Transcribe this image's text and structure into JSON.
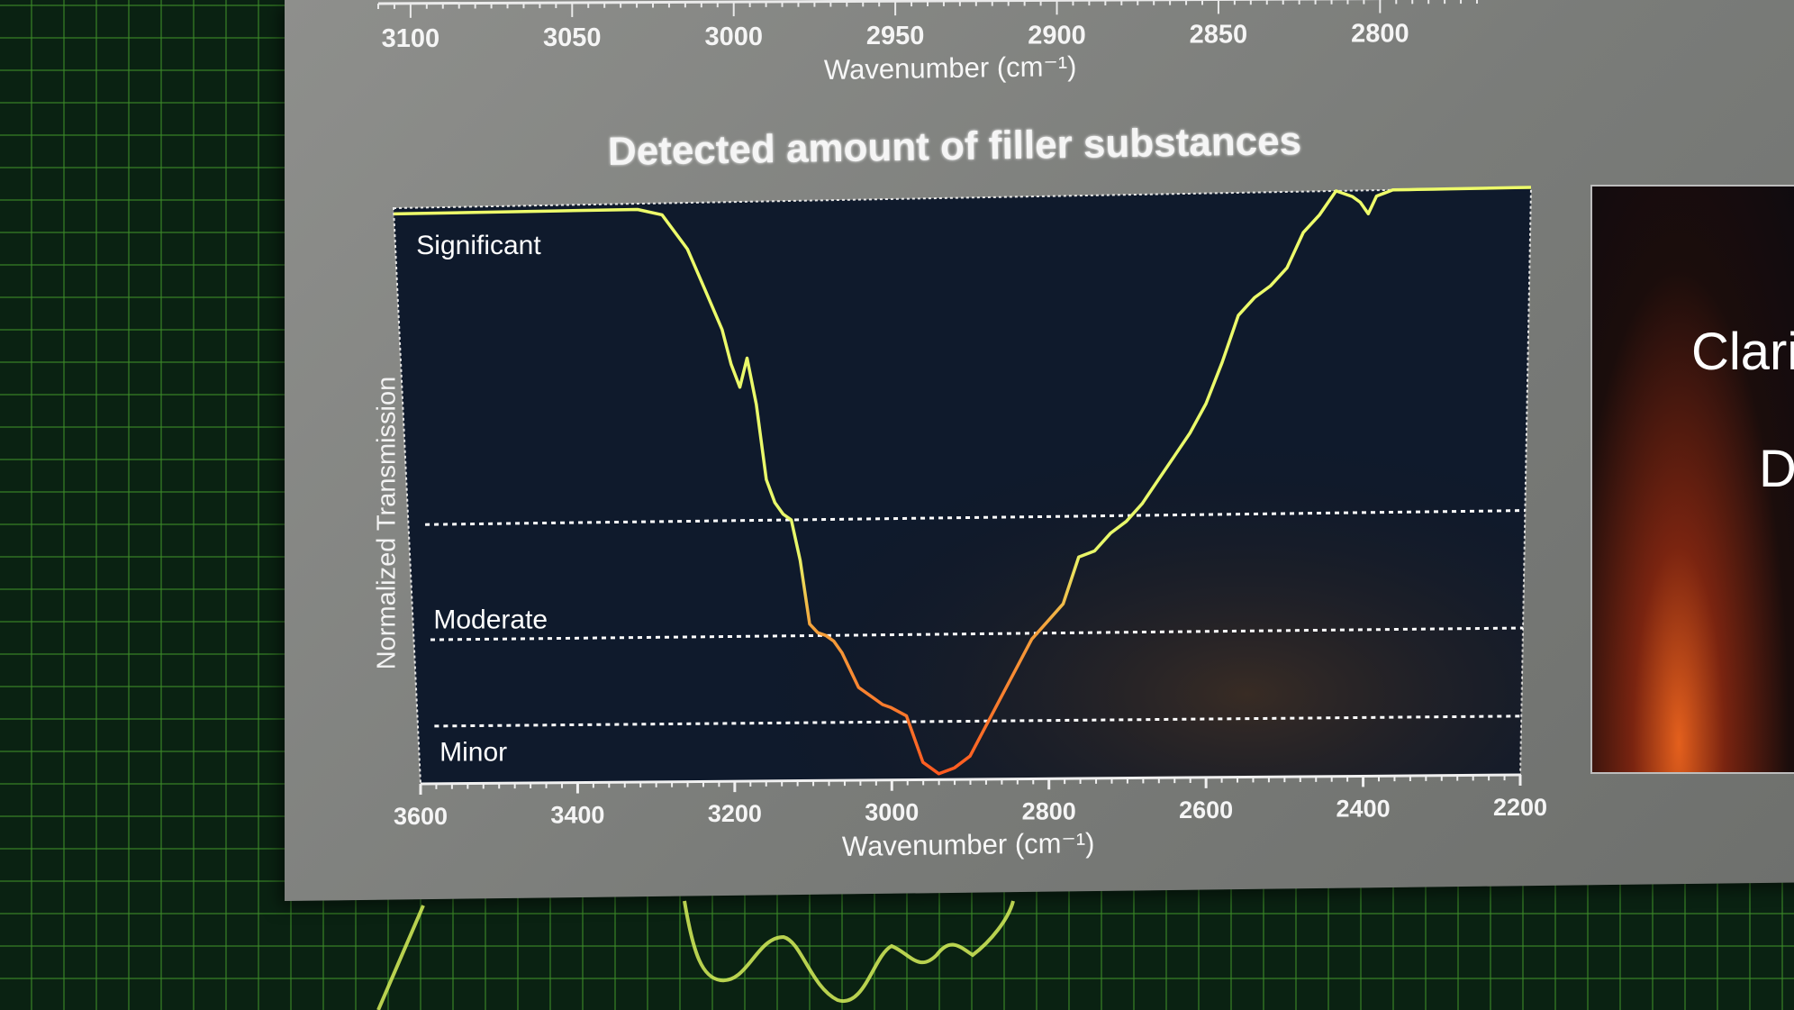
{
  "chart_data": [
    {
      "type": "line",
      "title": "",
      "xlabel": "Wavenumber (cm⁻¹)",
      "ylabel": "",
      "x_ticks": [
        3100,
        3050,
        3000,
        2950,
        2900,
        2850,
        2800
      ],
      "xlim": [
        3110,
        2770
      ],
      "note_partial": true
    },
    {
      "type": "line",
      "title": "Detected amount of filler substances",
      "xlabel": "Wavenumber (cm⁻¹)",
      "ylabel": "Normalized Transmission",
      "xlim": [
        3600,
        2200
      ],
      "ylim": [
        0,
        1
      ],
      "x_ticks": [
        3600,
        3400,
        3200,
        3000,
        2800,
        2600,
        2400,
        2200
      ],
      "bands": [
        {
          "label": "Significant",
          "threshold": 0.45
        },
        {
          "label": "Moderate",
          "threshold": 0.25
        },
        {
          "label": "Minor",
          "threshold": 0.1
        }
      ],
      "grid": false,
      "series": [
        {
          "x": [
            3600,
            3500,
            3400,
            3300,
            3270,
            3240,
            3220,
            3200,
            3190,
            3180,
            3170,
            3160,
            3150,
            3140,
            3130,
            3120,
            3110,
            3100,
            3090,
            3080,
            3070,
            3060,
            3040,
            3020,
            3010,
            3000,
            2980,
            2960,
            2940,
            2920,
            2900,
            2880,
            2860,
            2840,
            2820,
            2800,
            2780,
            2760,
            2740,
            2720,
            2700,
            2680,
            2660,
            2640,
            2620,
            2600,
            2580,
            2560,
            2540,
            2520,
            2500,
            2480,
            2460,
            2440,
            2420,
            2410,
            2400,
            2390,
            2380,
            2370,
            2360,
            2350,
            2340,
            2320,
            2300,
            2260,
            2220,
            2200
          ],
          "y": [
            0.99,
            0.99,
            0.99,
            0.99,
            0.98,
            0.92,
            0.85,
            0.78,
            0.72,
            0.68,
            0.73,
            0.65,
            0.52,
            0.48,
            0.46,
            0.45,
            0.38,
            0.27,
            0.255,
            0.25,
            0.24,
            0.22,
            0.16,
            0.14,
            0.13,
            0.125,
            0.11,
            0.03,
            0.01,
            0.02,
            0.04,
            0.09,
            0.14,
            0.19,
            0.24,
            0.27,
            0.3,
            0.38,
            0.39,
            0.42,
            0.44,
            0.47,
            0.51,
            0.55,
            0.59,
            0.64,
            0.71,
            0.79,
            0.82,
            0.84,
            0.87,
            0.93,
            0.96,
            1.0,
            0.99,
            0.98,
            0.96,
            0.99,
            0.995,
            1.0,
            1.0,
            1.0,
            1.0,
            1.0,
            1.0,
            1.0,
            1.0,
            1.0
          ]
        }
      ]
    }
  ],
  "side_panel": {
    "line1": "Clari",
    "line2": "De"
  }
}
